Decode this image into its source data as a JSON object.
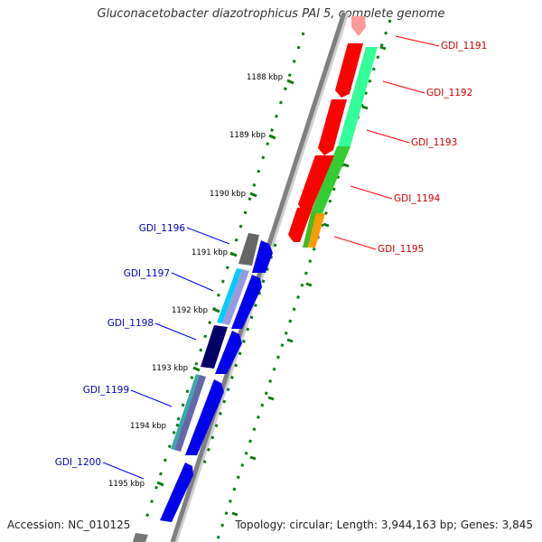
{
  "title": "Gluconacetobacter diazotrophicus PAl 5, complete genome",
  "footer": {
    "accession": "Accession: NC_010125",
    "summary": "Topology: circular; Length: 3,944,163 bp; Genes: 3,845"
  },
  "scale_labels": [
    "1188 kbp",
    "1189 kbp",
    "1190 kbp",
    "1191 kbp",
    "1192 kbp",
    "1193 kbp",
    "1194 kbp",
    "1195 kbp"
  ],
  "genes_right": [
    "GDI_1191",
    "GDI_1192",
    "GDI_1193",
    "GDI_1194",
    "GDI_1195"
  ],
  "genes_left": [
    "GDI_1196",
    "GDI_1197",
    "GDI_1198",
    "GDI_1199",
    "GDI_1200"
  ],
  "colors": {
    "forward_gene": "#ff0000",
    "reverse_gene": "#0000ff",
    "label_right": "#cc0000",
    "label_left": "#0000cc",
    "backbone": "#808080",
    "tick_green": "#006600"
  }
}
